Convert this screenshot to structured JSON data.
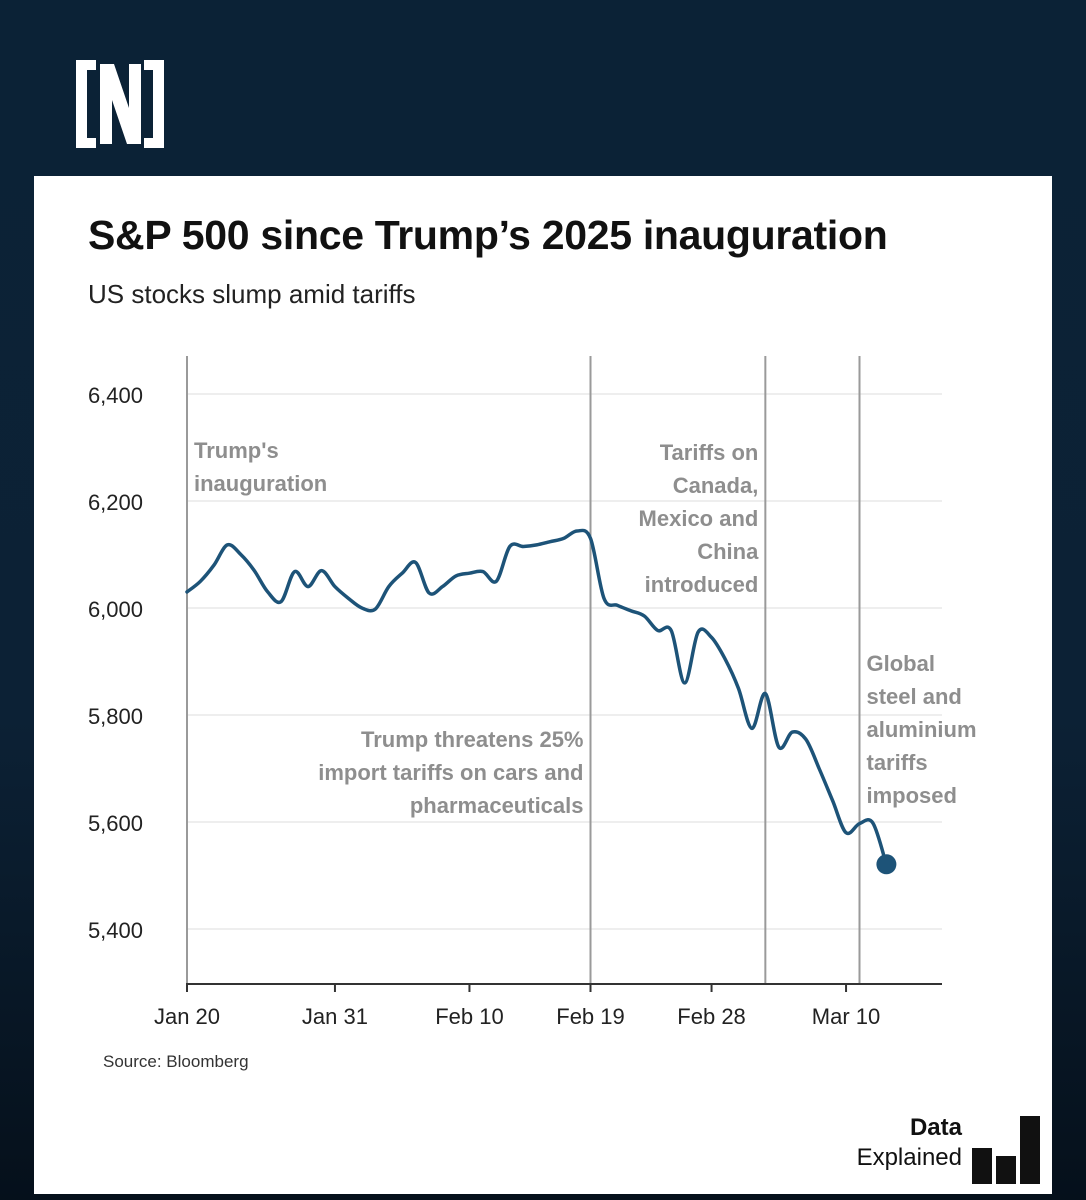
{
  "header": {
    "logo_icon": "n-bracket-logo-icon"
  },
  "title": "S&P 500 since Trump’s 2025 inauguration",
  "subtitle": "US stocks slump amid tariffs",
  "source": "Source: Bloomberg",
  "brand": {
    "line1": "Data",
    "line2": "Explained",
    "icon": "bar-chart-icon"
  },
  "colors": {
    "line": "#1d5378",
    "annotation": "#8e8e8e",
    "axis": "#333333",
    "grid": "#e8e8e8",
    "background": "#0b2236"
  },
  "chart_data": {
    "type": "line",
    "title": "S&P 500 since Trump’s 2025 inauguration",
    "subtitle": "US stocks slump amid tariffs",
    "xlabel": "",
    "ylabel": "",
    "ylim": [
      5300,
      6470
    ],
    "xlim": [
      0,
      56.5
    ],
    "grid": true,
    "y_ticks": [
      {
        "value": 5400,
        "label": "5,400"
      },
      {
        "value": 5600,
        "label": "5,600"
      },
      {
        "value": 5800,
        "label": "5,800"
      },
      {
        "value": 6000,
        "label": "6,000"
      },
      {
        "value": 6200,
        "label": "6,200"
      },
      {
        "value": 6400,
        "label": "6,400"
      }
    ],
    "x_ticks": [
      {
        "value": 0,
        "label": "Jan 20"
      },
      {
        "value": 11,
        "label": "Jan 31"
      },
      {
        "value": 21,
        "label": "Feb 10"
      },
      {
        "value": 30,
        "label": "Feb 19"
      },
      {
        "value": 39,
        "label": "Feb 28"
      },
      {
        "value": 49,
        "label": "Mar 10"
      }
    ],
    "series": [
      {
        "name": "S&P 500",
        "x": [
          0,
          1,
          2,
          3,
          4,
          5,
          6,
          7,
          8,
          9,
          10,
          11,
          12,
          13,
          14,
          15,
          16,
          17,
          18,
          19,
          20,
          21,
          22,
          23,
          24,
          25,
          26,
          27,
          28,
          29,
          30,
          31,
          32,
          33,
          34,
          35,
          36,
          37,
          38,
          39,
          40,
          41,
          42,
          43,
          44,
          45,
          46,
          47,
          48,
          49,
          50,
          51,
          52
        ],
        "y": [
          6030,
          6050,
          6080,
          6118,
          6100,
          6070,
          6030,
          6012,
          6068,
          6040,
          6070,
          6040,
          6018,
          6000,
          5998,
          6040,
          6065,
          6085,
          6028,
          6040,
          6060,
          6065,
          6068,
          6050,
          6115,
          6115,
          6118,
          6124,
          6130,
          6144,
          6130,
          6018,
          6005,
          5995,
          5985,
          5958,
          5958,
          5860,
          5955,
          5945,
          5905,
          5850,
          5775,
          5840,
          5740,
          5768,
          5755,
          5700,
          5640,
          5580,
          5597,
          5598,
          5520
        ]
      }
    ],
    "end_marker": {
      "x": 52,
      "y": 5521
    },
    "annotations": [
      {
        "x": 0,
        "text": "Trump's inauguration",
        "lines": [
          "Trump's",
          "inauguration"
        ]
      },
      {
        "x": 30,
        "text": "Trump threatens 25% import tariffs on cars and pharmaceuticals",
        "lines": [
          "Trump threatens 25%",
          "import tariffs on cars and",
          "pharmaceuticals"
        ]
      },
      {
        "x": 43,
        "text": "Tariffs on Canada, Mexico and China introduced",
        "lines": [
          "Tariffs on",
          "Canada,",
          "Mexico and",
          "China",
          "introduced"
        ]
      },
      {
        "x": 50,
        "text": "Global steel and aluminium tariffs imposed",
        "lines": [
          "Global",
          "steel and",
          "aluminium",
          "tariffs",
          "imposed"
        ]
      }
    ]
  }
}
